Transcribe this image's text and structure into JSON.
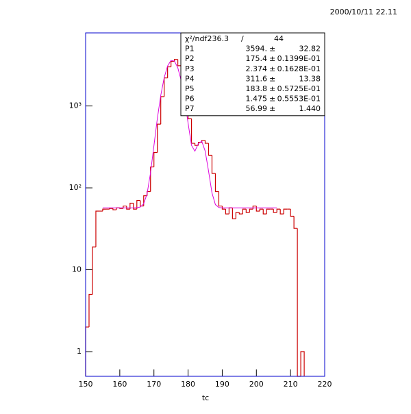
{
  "chart_data": {
    "type": "histogram",
    "timestamp": "2000/10/11   22.11",
    "xlabel": "tc",
    "bins": [
      150,
      151,
      152,
      153,
      154,
      155,
      156,
      157,
      158,
      159,
      160,
      161,
      162,
      163,
      164,
      165,
      166,
      167,
      168,
      169,
      170,
      171,
      172,
      173,
      174,
      175,
      176,
      177,
      178,
      179,
      180,
      181,
      182,
      183,
      184,
      185,
      186,
      187,
      188,
      189,
      190,
      191,
      192,
      193,
      194,
      195,
      196,
      197,
      198,
      199,
      200,
      201,
      202,
      203,
      204,
      205,
      206,
      207,
      208,
      209,
      210,
      211,
      212,
      213,
      214
    ],
    "values": [
      2,
      5,
      19,
      52,
      52,
      55,
      55,
      56,
      54,
      57,
      56,
      60,
      55,
      65,
      55,
      70,
      60,
      80,
      90,
      180,
      270,
      600,
      1300,
      2200,
      3000,
      3500,
      3700,
      3100,
      2200,
      1200,
      700,
      350,
      330,
      360,
      380,
      350,
      250,
      150,
      90,
      60,
      55,
      48,
      57,
      42,
      50,
      48,
      55,
      50,
      55,
      60,
      52,
      55,
      48,
      55,
      55,
      50,
      55,
      48,
      55,
      55,
      45,
      32,
      0,
      1
    ],
    "color": "#cc0000",
    "fit": {
      "color": "#dd00dd",
      "x": [
        155,
        156,
        157,
        158,
        159,
        160,
        161,
        162,
        163,
        164,
        165,
        166,
        167,
        168,
        169,
        170,
        171,
        172,
        173,
        174,
        175,
        176,
        177,
        178,
        179,
        180,
        181,
        182,
        183,
        184,
        185,
        186,
        187,
        188,
        189,
        190,
        191,
        192,
        193,
        194,
        195,
        196,
        197,
        198,
        199,
        200,
        201,
        202,
        203,
        204,
        205,
        206
      ],
      "values": [
        57.0,
        57.0,
        57.0,
        57.0,
        57.0,
        57.0,
        57.0,
        57.0,
        57.0,
        57.0,
        57.2,
        58.4,
        63.9,
        84.9,
        151.9,
        327.4,
        702.6,
        1345.8,
        2213,
        3077,
        3600,
        3538,
        2921,
        2029,
        1197,
        618,
        330.8,
        280.3,
        347.2,
        370.9,
        281.8,
        159.5,
        86.6,
        62.4,
        57.6,
        57.0,
        57.0,
        57.0,
        57.0,
        57.0,
        57.0,
        57.0,
        57.0,
        57.0,
        57.0,
        57.0,
        57.0,
        57.0,
        57.0,
        57.0,
        57.0,
        57.0
      ]
    },
    "xlim": [
      150,
      220
    ],
    "xticks": [
      150,
      160,
      170,
      180,
      190,
      200,
      210,
      220
    ],
    "ylim": [
      0.5,
      7800
    ],
    "log_y": true,
    "yticks": [
      1,
      10,
      {
        "value": 100,
        "label": "10²"
      },
      {
        "value": 1000,
        "label": "10³"
      }
    ],
    "stats": {
      "header": {
        "label": "χ²/ndf",
        "chi2": "236.3",
        "sep": "/",
        "ndf": "44"
      },
      "separator": "±",
      "rows": [
        {
          "name": "P1",
          "value": "3594.",
          "error": "32.82"
        },
        {
          "name": "P2",
          "value": "175.4",
          "error": "0.1399E-01"
        },
        {
          "name": "P3",
          "value": "2.374",
          "error": "0.1628E-01"
        },
        {
          "name": "P4",
          "value": "311.6",
          "error": "13.38"
        },
        {
          "name": "P5",
          "value": "183.8",
          "error": "0.5725E-01"
        },
        {
          "name": "P6",
          "value": "1.475",
          "error": "0.5553E-01"
        },
        {
          "name": "P7",
          "value": "56.99",
          "error": "1.440"
        }
      ]
    }
  }
}
